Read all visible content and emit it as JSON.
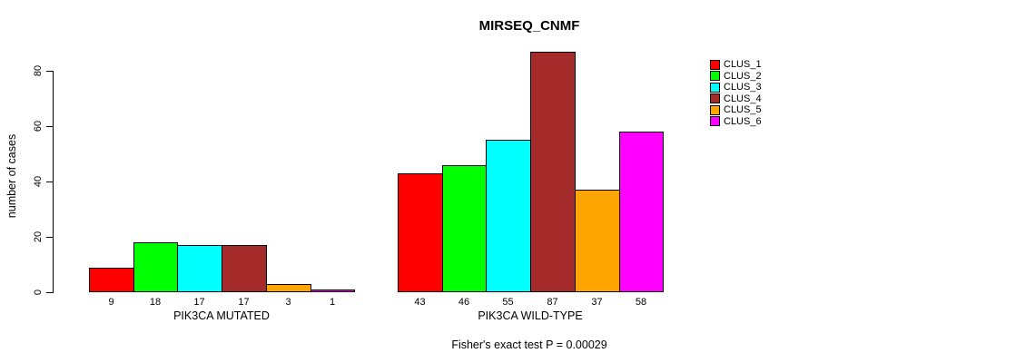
{
  "chart_data": {
    "type": "bar",
    "title": "MIRSEQ_CNMF",
    "xlabel": "",
    "ylabel": "number of cases",
    "categories": [
      "PIK3CA MUTATED",
      "PIK3CA WILD-TYPE"
    ],
    "series": [
      {
        "name": "CLUS_1",
        "color": "#FF0000",
        "values": [
          9,
          43
        ]
      },
      {
        "name": "CLUS_2",
        "color": "#00FF00",
        "values": [
          18,
          46
        ]
      },
      {
        "name": "CLUS_3",
        "color": "#00FFFF",
        "values": [
          17,
          55
        ]
      },
      {
        "name": "CLUS_4",
        "color": "#A52A2A",
        "values": [
          17,
          87
        ]
      },
      {
        "name": "CLUS_5",
        "color": "#FFA500",
        "values": [
          3,
          37
        ]
      },
      {
        "name": "CLUS_6",
        "color": "#FF00FF",
        "values": [
          1,
          58
        ]
      }
    ],
    "ylim": [
      0,
      87
    ],
    "yticks": [
      0,
      20,
      40,
      60,
      80
    ],
    "grid": false,
    "legend_position": "right",
    "value_labels_shown": true,
    "annotation": "Fisher's exact test P = 0.00029",
    "colors": {
      "background": "#FFFFFF",
      "axis": "#000000",
      "text": "#000000",
      "bar_border": "#000000"
    }
  }
}
